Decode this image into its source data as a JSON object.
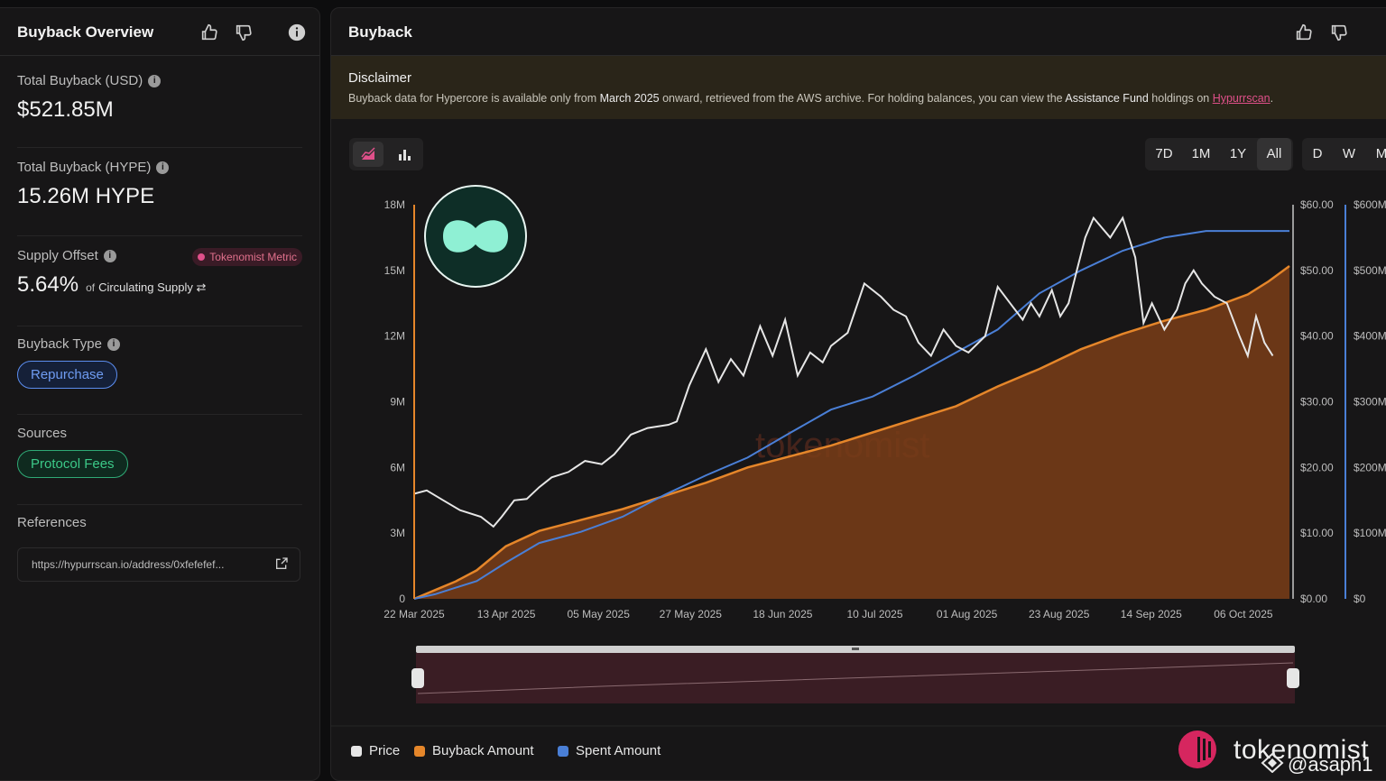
{
  "overview": {
    "title": "Buyback Overview",
    "total_usd_label": "Total Buyback (USD)",
    "total_usd_value": "$521.85M",
    "total_hype_label": "Total Buyback (HYPE)",
    "total_hype_value": "15.26M HYPE",
    "supply_offset_label": "Supply Offset",
    "tokenomist_metric": "Tokenomist Metric",
    "supply_offset_value": "5.64%",
    "supply_offset_of": "of",
    "circulating_supply": "Circulating Supply ⇄",
    "buyback_type_label": "Buyback Type",
    "buyback_type_value": "Repurchase",
    "sources_label": "Sources",
    "sources_value": "Protocol Fees",
    "references_label": "References",
    "reference_url": "https://hypurrscan.io/address/0xfefefef..."
  },
  "buyback": {
    "title": "Buyback",
    "disclaimer_title": "Disclaimer",
    "disclaimer_pre": "Buyback data for Hypercore is available only from ",
    "disclaimer_date": "March 2025",
    "disclaimer_mid": " onward, retrieved from the AWS archive. For holding balances, you can view the ",
    "disclaimer_fund": "Assistance Fund",
    "disclaimer_post": " holdings on ",
    "disclaimer_link": "Hypurrscan",
    "disclaimer_end": ".",
    "ranges": [
      "7D",
      "1M",
      "1Y",
      "All"
    ],
    "active_range": "All",
    "intervals": [
      "D",
      "W",
      "M"
    ],
    "legend": [
      "Price",
      "Buyback Amount",
      "Spent Amount"
    ],
    "watermark": "tokenomist",
    "brand": "tokenomist",
    "handle": "@asaph1"
  },
  "colors": {
    "price": "#e6e6e6",
    "buyback": "#e5862a",
    "spent": "#4a7fd6",
    "accent": "#e0508a",
    "repurchase": "#5b8def",
    "protocol": "#34c98a"
  },
  "chart_data": {
    "type": "area",
    "x_tick_labels": [
      "22 Mar 2025",
      "13 Apr 2025",
      "05 May 2025",
      "27 May 2025",
      "18 Jun 2025",
      "10 Jul 2025",
      "01 Aug 2025",
      "23 Aug 2025",
      "14 Sep 2025",
      "06 Oct 2025"
    ],
    "y_left_ticks": [
      "0",
      "3M",
      "6M",
      "9M",
      "12M",
      "15M",
      "18M"
    ],
    "y_price_ticks": [
      "$0.00",
      "$10.00",
      "$20.00",
      "$30.00",
      "$40.00",
      "$50.00",
      "$60.00"
    ],
    "y_spent_ticks": [
      "$0",
      "$100M",
      "$200M",
      "$300M",
      "$400M",
      "$500M",
      "$600M"
    ],
    "ylim_left": [
      0,
      18000000
    ],
    "ylim_price": [
      0,
      60
    ],
    "ylim_spent": [
      0,
      600000000
    ],
    "x_days": [
      0,
      5,
      10,
      15,
      22,
      30,
      40,
      50,
      60,
      70,
      80,
      90,
      100,
      110,
      120,
      130,
      140,
      150,
      160,
      170,
      180,
      190,
      200,
      205,
      210
    ],
    "series": [
      {
        "name": "Buyback Amount",
        "axis": "left",
        "values": [
          0,
          400000,
          800000,
          1300000,
          2400000,
          3100000,
          3600000,
          4100000,
          4700000,
          5300000,
          6000000,
          6500000,
          7000000,
          7600000,
          8200000,
          8800000,
          9700000,
          10500000,
          11400000,
          12100000,
          12700000,
          13200000,
          13900000,
          14500000,
          15200000
        ]
      },
      {
        "name": "Spent Amount",
        "axis": "right-usd",
        "values": [
          0,
          7000000,
          17000000,
          27000000,
          55000000,
          85000000,
          102000000,
          125000000,
          158000000,
          188000000,
          215000000,
          252000000,
          288000000,
          308000000,
          340000000,
          375000000,
          410000000,
          465000000,
          500000000,
          530000000,
          550000000,
          560000000,
          560000000,
          560000000,
          560000000
        ]
      },
      {
        "name": "Price",
        "axis": "right-price",
        "x_days": [
          0,
          3,
          7,
          11,
          16,
          19,
          21,
          24,
          27,
          30,
          33,
          37,
          41,
          45,
          48,
          52,
          56,
          61,
          63,
          66,
          70,
          73,
          76,
          79,
          83,
          86,
          89,
          92,
          95,
          98,
          100,
          104,
          108,
          112,
          115,
          118,
          121,
          124,
          127,
          130,
          133,
          137,
          140,
          143,
          146,
          148,
          150,
          153,
          155,
          157,
          159,
          161,
          163,
          165,
          167,
          170,
          173,
          175,
          177,
          180,
          183,
          185,
          187,
          189,
          192,
          195,
          198,
          200,
          202,
          204,
          206
        ],
        "values": [
          16.0,
          16.5,
          15.0,
          13.5,
          12.5,
          11.0,
          12.5,
          15.0,
          15.2,
          17.0,
          18.5,
          19.3,
          21.0,
          20.5,
          22.0,
          25.0,
          26.0,
          26.5,
          27.0,
          32.5,
          38.0,
          33.0,
          36.5,
          34.0,
          41.5,
          37.0,
          42.5,
          34.0,
          37.5,
          36.0,
          38.5,
          40.5,
          48.0,
          46.0,
          44.0,
          43.0,
          39.0,
          37.0,
          41.0,
          38.5,
          37.5,
          40.0,
          47.5,
          45.0,
          42.5,
          45.0,
          43.0,
          47.0,
          43.0,
          45.0,
          50.0,
          55.0,
          58.0,
          56.5,
          55.0,
          58.0,
          52.0,
          42.0,
          45.0,
          41.0,
          44.0,
          48.0,
          50.0,
          48.0,
          46.0,
          45.0,
          40.0,
          37.0,
          43.0,
          39.0,
          37.0
        ]
      }
    ],
    "legend_position": "bottom-left",
    "grid": false
  }
}
